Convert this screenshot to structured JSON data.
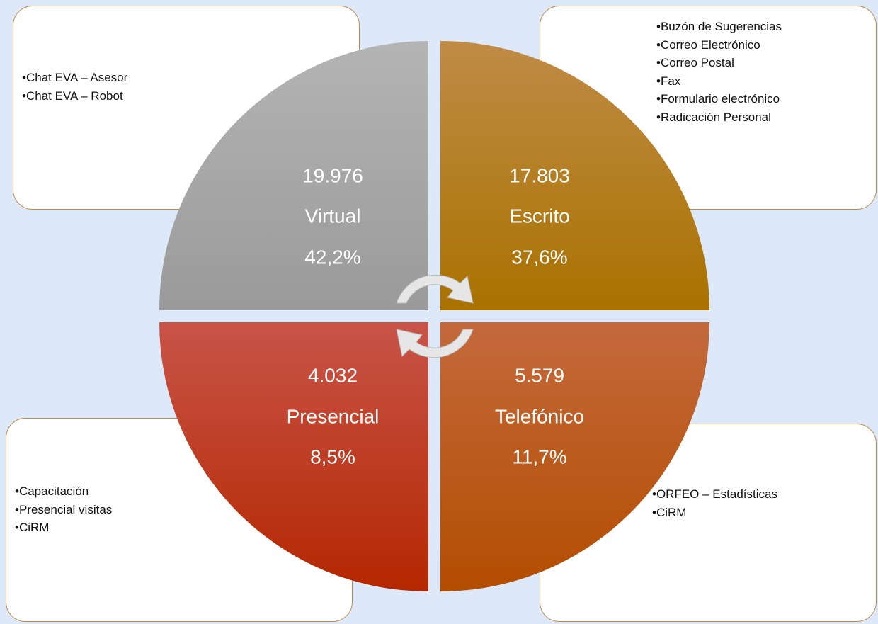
{
  "quadrants": [
    {
      "count": "19.976",
      "label": "Virtual",
      "share": "42,2%",
      "items": [
        "Chat EVA – Asesor",
        "Chat EVA – Robot"
      ]
    },
    {
      "count": "17.803",
      "label": "Escrito",
      "share": "37,6%",
      "items": [
        "Buzón de Sugerencias",
        "Correo Electrónico",
        "Correo Postal",
        "Fax",
        "Formulario electrónico",
        "Radicación Personal"
      ]
    },
    {
      "count": "4.032",
      "label": "Presencial",
      "share": "8,5%",
      "items": [
        "Capacitación",
        "Presencial visitas",
        "CiRM"
      ]
    },
    {
      "count": "5.579",
      "label": "Telefónico",
      "share": "11,7%",
      "items": [
        "ORFEO – Estadísticas",
        "CiRM"
      ]
    }
  ]
}
